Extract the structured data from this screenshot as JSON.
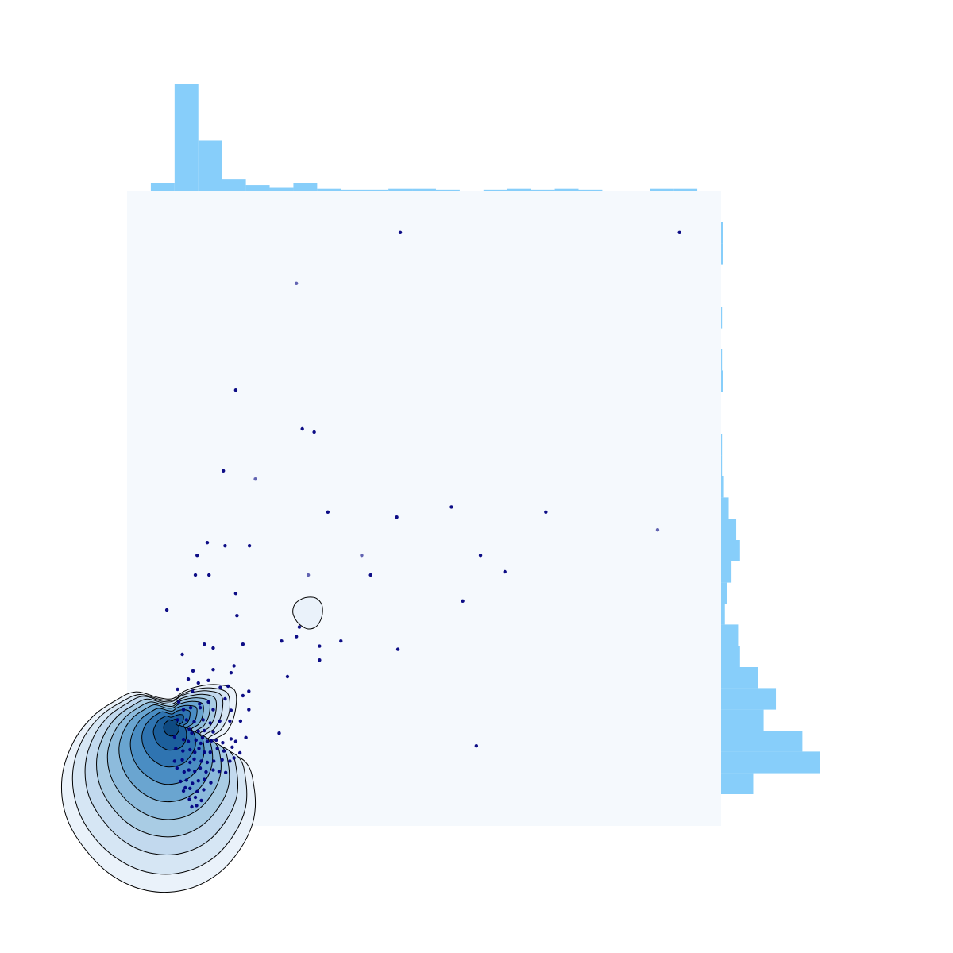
{
  "chart_data": {
    "type": "scatter",
    "title": "",
    "xlabel": "",
    "ylabel": "",
    "xlim": [
      0,
      100
    ],
    "ylim": [
      0,
      100
    ],
    "grid": false,
    "show_axes": false,
    "colors": {
      "plot_background": "#f5f9fd",
      "histogram": "#87cefa",
      "points": "#000080",
      "contour_line": "#000000",
      "kde_fills": [
        "#eaf2fa",
        "#d6e6f4",
        "#c2d9ee",
        "#a9cce4",
        "#8dbbdc",
        "#6aa5d0",
        "#4a8dc3",
        "#2f74b1",
        "#1c5f9c",
        "#0e4a82"
      ]
    },
    "marginal_x": {
      "bin_edges": [
        4,
        8,
        12,
        16,
        20,
        24,
        28,
        32,
        36,
        40,
        44,
        48,
        52,
        56,
        60,
        64,
        68,
        72,
        76,
        80,
        84,
        88,
        92,
        96
      ],
      "counts": [
        8,
        116,
        55,
        12,
        6,
        3,
        8,
        2,
        1,
        1,
        2,
        2,
        1,
        0,
        1,
        2,
        1,
        2,
        1,
        0,
        0,
        2,
        2
      ]
    },
    "marginal_y": {
      "bin_edges": [
        5,
        8.3,
        11.7,
        15,
        18.3,
        21.7,
        25,
        28.3,
        31.7,
        35,
        38.3,
        41.7,
        45,
        48.3,
        51.7,
        55,
        58.3,
        61.7,
        65,
        68.3,
        71.7,
        75,
        78.3,
        81.7,
        85,
        88.3,
        91.7,
        95
      ],
      "counts": [
        34,
        105,
        86,
        45,
        58,
        39,
        20,
        18,
        4,
        6,
        11,
        20,
        16,
        8,
        3,
        1,
        1,
        0,
        0,
        2,
        1,
        0,
        1,
        0,
        0,
        2,
        2
      ]
    },
    "points": [
      [
        46,
        93.4
      ],
      [
        93,
        93.4
      ],
      [
        28.5,
        85.4
      ],
      [
        18.3,
        68.6
      ],
      [
        29.5,
        62.5
      ],
      [
        31.5,
        62.0
      ],
      [
        16.2,
        55.9
      ],
      [
        21.6,
        54.6
      ],
      [
        33.8,
        49.4
      ],
      [
        45.4,
        48.6
      ],
      [
        54.6,
        50.2
      ],
      [
        70.5,
        49.4
      ],
      [
        89.3,
        46.6
      ],
      [
        13.5,
        44.6
      ],
      [
        16.5,
        44.1
      ],
      [
        20.6,
        44.1
      ],
      [
        11.8,
        42.6
      ],
      [
        39.5,
        42.6
      ],
      [
        59.5,
        42.6
      ],
      [
        63.6,
        40.0
      ],
      [
        11.5,
        39.5
      ],
      [
        13.8,
        39.5
      ],
      [
        30.5,
        39.5
      ],
      [
        41.0,
        39.5
      ],
      [
        18.3,
        36.6
      ],
      [
        56.5,
        35.4
      ],
      [
        6.7,
        34.0
      ],
      [
        18.5,
        33.1
      ],
      [
        29.0,
        31.3
      ],
      [
        28.5,
        29.8
      ],
      [
        26.0,
        29.1
      ],
      [
        36.0,
        29.1
      ],
      [
        19.5,
        28.6
      ],
      [
        32.4,
        28.3
      ],
      [
        13.0,
        28.6
      ],
      [
        45.6,
        27.8
      ],
      [
        32.4,
        26.1
      ],
      [
        14.5,
        28.0
      ],
      [
        9.3,
        27.0
      ],
      [
        18.0,
        25.2
      ],
      [
        11.1,
        24.4
      ],
      [
        14.5,
        24.6
      ],
      [
        17.5,
        24.1
      ],
      [
        27.0,
        23.5
      ],
      [
        10.3,
        23.1
      ],
      [
        12.0,
        22.5
      ],
      [
        13.7,
        22.9
      ],
      [
        17.0,
        22.0
      ],
      [
        8.5,
        21.5
      ],
      [
        11.0,
        21.2
      ],
      [
        15.7,
        21.8
      ],
      [
        20.5,
        21.2
      ],
      [
        8.7,
        19.5
      ],
      [
        13.7,
        19.5
      ],
      [
        16.5,
        20.0
      ],
      [
        19.5,
        20.5
      ],
      [
        9.5,
        18.3
      ],
      [
        10.7,
        18.6
      ],
      [
        12.3,
        18.6
      ],
      [
        14.5,
        18.3
      ],
      [
        17.5,
        18.2
      ],
      [
        20.5,
        18.3
      ],
      [
        8.5,
        16.7
      ],
      [
        10.0,
        16.7
      ],
      [
        11.3,
        16.4
      ],
      [
        12.8,
        16.7
      ],
      [
        14.0,
        16.2
      ],
      [
        15.6,
        16.5
      ],
      [
        17.3,
        16.5
      ],
      [
        19.1,
        16.5
      ],
      [
        10.5,
        15.2
      ],
      [
        12.0,
        14.9
      ],
      [
        13.0,
        15.0
      ],
      [
        14.5,
        14.8
      ],
      [
        25.6,
        14.6
      ],
      [
        8.0,
        14.0
      ],
      [
        9.5,
        13.6
      ],
      [
        10.3,
        13.3
      ],
      [
        11.6,
        13.5
      ],
      [
        12.4,
        13.0
      ],
      [
        13.5,
        13.3
      ],
      [
        14.2,
        13.4
      ],
      [
        15.0,
        13.5
      ],
      [
        16.1,
        13.1
      ],
      [
        17.5,
        13.7
      ],
      [
        18.3,
        13.3
      ],
      [
        20.0,
        13.9
      ],
      [
        8.2,
        12.2
      ],
      [
        9.4,
        11.8
      ],
      [
        10.6,
        12.0
      ],
      [
        11.4,
        11.6
      ],
      [
        12.1,
        12.2
      ],
      [
        13.0,
        11.6
      ],
      [
        14.0,
        11.6
      ],
      [
        15.2,
        12.2
      ],
      [
        16.3,
        11.8
      ],
      [
        17.7,
        12.4
      ],
      [
        19.0,
        11.5
      ],
      [
        8.0,
        10.2
      ],
      [
        9.3,
        10.4
      ],
      [
        10.6,
        10.0
      ],
      [
        11.3,
        10.5
      ],
      [
        12.5,
        10.2
      ],
      [
        13.5,
        10.0
      ],
      [
        14.6,
        10.2
      ],
      [
        16.0,
        10.4
      ],
      [
        17.3,
        10.2
      ],
      [
        18.0,
        10.7
      ],
      [
        58.8,
        12.6
      ],
      [
        8.4,
        9.1
      ],
      [
        9.6,
        8.5
      ],
      [
        10.4,
        8.8
      ],
      [
        11.4,
        8.6
      ],
      [
        12.3,
        9.1
      ],
      [
        13.3,
        8.5
      ],
      [
        14.5,
        8.8
      ],
      [
        15.5,
        8.6
      ],
      [
        16.6,
        8.4
      ],
      [
        9.0,
        7.0
      ],
      [
        10.0,
        7.2
      ],
      [
        11.0,
        6.7
      ],
      [
        12.0,
        7.1
      ],
      [
        13.0,
        7.3
      ],
      [
        14.1,
        6.8
      ],
      [
        9.5,
        5.5
      ],
      [
        10.6,
        5.9
      ],
      [
        11.8,
        5.4
      ],
      [
        12.9,
        5.7
      ],
      [
        10.5,
        4.2
      ],
      [
        11.5,
        4.5
      ],
      [
        12.5,
        4.0
      ],
      [
        10.9,
        3.0
      ],
      [
        11.7,
        3.2
      ],
      [
        9.8,
        6.0
      ],
      [
        12.2,
        19.2
      ],
      [
        10.9,
        14.6
      ],
      [
        12.7,
        13.9
      ]
    ],
    "kde": {
      "levels": [
        {
          "cx": 9.6,
          "cy": 12.9,
          "r": [
            4.7,
            7.4,
            9.9,
            12.0,
            10.8,
            9.4,
            8.3,
            7.4,
            8.4,
            11.6,
            13.5,
            16.1,
            18.8,
            21.3,
            22.9,
            23.5,
            24.0,
            23.9,
            23.0,
            21.3,
            19.0,
            16.6,
            13.6,
            10.6
          ]
        },
        {
          "cx": 9.4,
          "cy": 13.4,
          "r": [
            4.3,
            6.6,
            9.0,
            10.6,
            9.6,
            8.4,
            7.4,
            6.6,
            7.5,
            10.3,
            12.1,
            14.5,
            17.0,
            19.2,
            20.6,
            21.3,
            21.6,
            21.5,
            20.7,
            19.2,
            17.1,
            14.9,
            12.2,
            9.6
          ]
        },
        {
          "cx": 9.2,
          "cy": 13.9,
          "r": [
            3.8,
            5.8,
            7.8,
            9.4,
            8.5,
            7.4,
            6.6,
            5.9,
            6.6,
            9.2,
            10.7,
            12.8,
            14.9,
            16.8,
            18.1,
            18.6,
            19.0,
            18.9,
            18.2,
            16.9,
            15.0,
            13.1,
            10.7,
            8.4
          ]
        },
        {
          "cx": 9.0,
          "cy": 14.3,
          "r": [
            3.3,
            5.1,
            6.8,
            8.2,
            7.4,
            6.4,
            5.7,
            5.1,
            5.8,
            8.0,
            9.3,
            11.1,
            12.9,
            14.6,
            15.7,
            16.2,
            16.5,
            16.4,
            15.8,
            14.6,
            13.0,
            11.4,
            9.3,
            7.3
          ]
        },
        {
          "cx": 8.8,
          "cy": 14.7,
          "r": [
            2.8,
            4.3,
            5.8,
            7.0,
            6.3,
            5.5,
            4.9,
            4.3,
            4.9,
            6.8,
            7.9,
            9.4,
            11.0,
            12.5,
            13.4,
            13.8,
            14.0,
            14.0,
            13.5,
            12.5,
            11.1,
            9.7,
            8.0,
            6.2
          ]
        },
        {
          "cx": 8.6,
          "cy": 15.1,
          "r": [
            2.3,
            3.6,
            4.8,
            5.8,
            5.2,
            4.5,
            4.0,
            3.6,
            4.0,
            5.6,
            6.5,
            7.8,
            9.1,
            10.3,
            11.0,
            11.4,
            11.6,
            11.6,
            11.1,
            10.3,
            9.2,
            8.0,
            6.6,
            5.1
          ]
        },
        {
          "cx": 8.4,
          "cy": 15.4,
          "r": [
            1.8,
            2.8,
            3.8,
            4.6,
            4.1,
            3.6,
            3.2,
            2.8,
            3.2,
            4.4,
            5.1,
            6.1,
            7.1,
            8.1,
            8.7,
            9.0,
            9.1,
            9.1,
            8.7,
            8.1,
            7.2,
            6.3,
            5.2,
            4.0
          ]
        },
        {
          "cx": 8.2,
          "cy": 15.7,
          "r": [
            1.3,
            2.0,
            2.7,
            3.3,
            3.0,
            2.6,
            2.3,
            2.0,
            2.3,
            3.2,
            3.7,
            4.4,
            5.2,
            5.9,
            6.3,
            6.5,
            6.6,
            6.6,
            6.3,
            5.9,
            5.2,
            4.6,
            3.8,
            2.9
          ]
        },
        {
          "cx": 8.0,
          "cy": 15.9,
          "r": [
            0.8,
            1.3,
            1.7,
            2.1,
            1.9,
            1.6,
            1.4,
            1.3,
            1.4,
            2.0,
            2.3,
            2.8,
            3.2,
            3.7,
            3.9,
            4.1,
            4.1,
            4.1,
            3.9,
            3.7,
            3.3,
            2.8,
            2.3,
            1.8
          ]
        },
        {
          "cx": 7.8,
          "cy": 16.0,
          "r": [
            0.4,
            0.6,
            0.8,
            1.0,
            0.9,
            0.8,
            0.7,
            0.6,
            0.7,
            1.0,
            1.1,
            1.3,
            1.5,
            1.7,
            1.8,
            1.9,
            1.9,
            1.9,
            1.8,
            1.7,
            1.5,
            1.3,
            1.1,
            0.9
          ]
        }
      ],
      "islands": [
        {
          "cx": 30.5,
          "cy": 33.6,
          "r": [
            2.4,
            2.6,
            2.6,
            2.4,
            2.4,
            2.6,
            2.6,
            2.4,
            2.4,
            2.6,
            2.6,
            2.4
          ]
        }
      ]
    }
  }
}
